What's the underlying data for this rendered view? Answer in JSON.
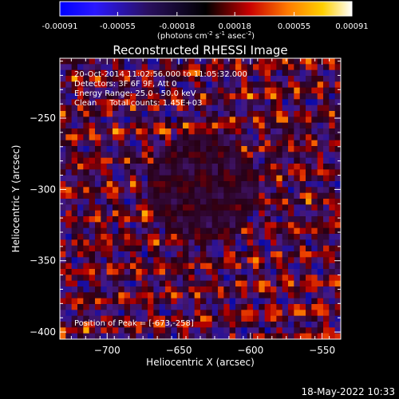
{
  "chart_data": {
    "type": "heatmap",
    "title": "Reconstructed RHESSI Image",
    "xlabel": "Heliocentric X (arcsec)",
    "ylabel": "Heliocentric Y (arcsec)",
    "xlim": [
      -733,
      -537
    ],
    "ylim": [
      -405,
      -208
    ],
    "x_ticks": [
      -700,
      -650,
      -600,
      -550
    ],
    "y_ticks": [
      -250,
      -300,
      -350,
      -400
    ],
    "x_tick_labels": [
      "−700",
      "−650",
      "−600",
      "−550"
    ],
    "y_tick_labels": [
      "−250",
      "−300",
      "−350",
      "−400"
    ],
    "colorbar": {
      "min": -0.00091,
      "max": 0.00091,
      "ticks": [
        -0.00091,
        -0.00055,
        -0.00018,
        0.00018,
        0.00055,
        0.00091
      ],
      "tick_labels": [
        "-0.00091",
        "-0.00055",
        "-0.00018",
        "0.00018",
        "0.00055",
        "0.00091"
      ],
      "unit_parts": [
        "(photons cm",
        "-2",
        " s",
        "-1",
        " asec",
        "-2",
        ")"
      ],
      "colors": [
        "#0000ff",
        "#000000",
        "#c80000",
        "#ff7a00",
        "#ffd000",
        "#ffffff"
      ]
    },
    "annotations": [
      "20-Oct-2014 11:02:56.000 to 11:05:32.000",
      "Detectors: 3F 6F 9F, Att 0",
      "Energy Range: 25.0 - 50.0 keV",
      "Clean     Total counts: 1.45E+03"
    ],
    "peak_label": "Position of Peak = [-673,-258]",
    "peak": [
      -673,
      -258
    ]
  },
  "footer": {
    "timestamp": "18-May-2022 10:33"
  }
}
